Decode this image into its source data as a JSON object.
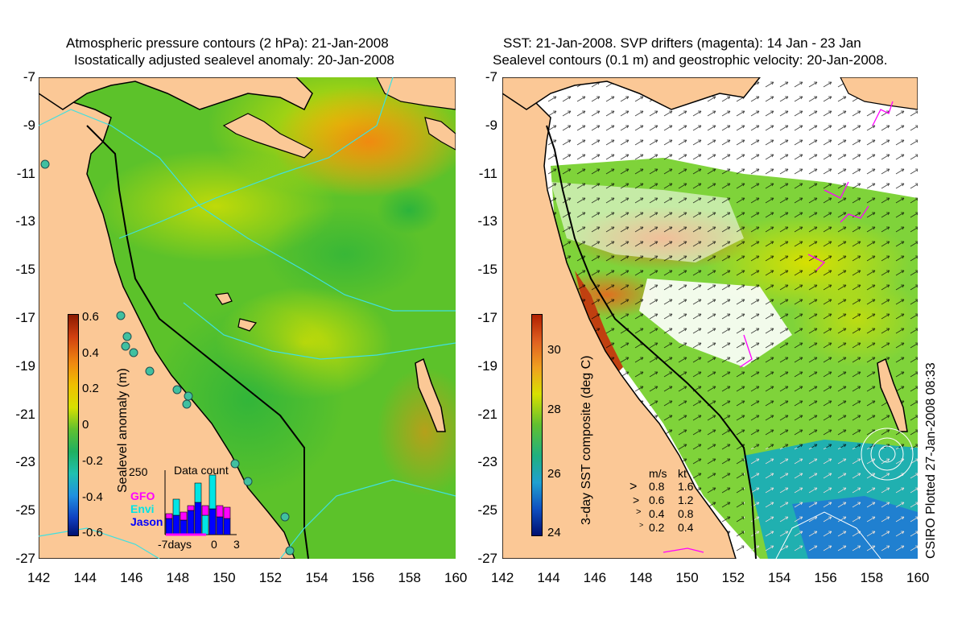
{
  "left_panel": {
    "title_line1": "Atmospheric pressure contours (2 hPa): 21-Jan-2008",
    "title_line2": "Isostatically adjusted sealevel anomaly: 20-Jan-2008",
    "colorbar_label": "Sealevel anomaly (m)",
    "colorbar_ticks": [
      "0.6",
      "0.4",
      "0.2",
      "0",
      "-0.2",
      "-0.4",
      "-0.6"
    ],
    "inset": {
      "title": "Data count",
      "ymax_label": "250",
      "legend": [
        {
          "label": "GFO",
          "color": "#ff00ff"
        },
        {
          "label": "Envi",
          "color": "#00e5e5"
        },
        {
          "label": "Jason",
          "color": "#0000ff"
        }
      ],
      "x_labels": [
        "-7days",
        "0",
        "3"
      ]
    }
  },
  "right_panel": {
    "title_line1": "SST: 21-Jan-2008. SVP drifters (magenta): 14 Jan - 23 Jan",
    "title_line2": "Sealevel contours (0.1 m) and geostrophic velocity: 20-Jan-2008.",
    "colorbar_label": "3-day SST composite (deg C)",
    "colorbar_ticks": [
      "30",
      "28",
      "26",
      "24"
    ],
    "velocity_legend": {
      "header_ms": "m/s",
      "header_kt": "kt",
      "rows": [
        {
          "ms": "0.8",
          "kt": "1.6"
        },
        {
          "ms": "0.6",
          "kt": "1.2"
        },
        {
          "ms": "0.4",
          "kt": "0.8"
        },
        {
          "ms": "0.2",
          "kt": "0.4"
        }
      ]
    }
  },
  "axes": {
    "y_ticks": [
      "-7",
      "-9",
      "-11",
      "-13",
      "-15",
      "-17",
      "-19",
      "-21",
      "-23",
      "-25",
      "-27"
    ],
    "x_ticks": [
      "142",
      "144",
      "146",
      "148",
      "150",
      "152",
      "154",
      "156",
      "158",
      "160"
    ]
  },
  "credit": "CSIRO Plotted 27-Jan-2008 08:33",
  "colors": {
    "land": "#fbc896",
    "coast": "#000000",
    "contour": "#3fe0e0",
    "drifter": "#ff00ff"
  }
}
